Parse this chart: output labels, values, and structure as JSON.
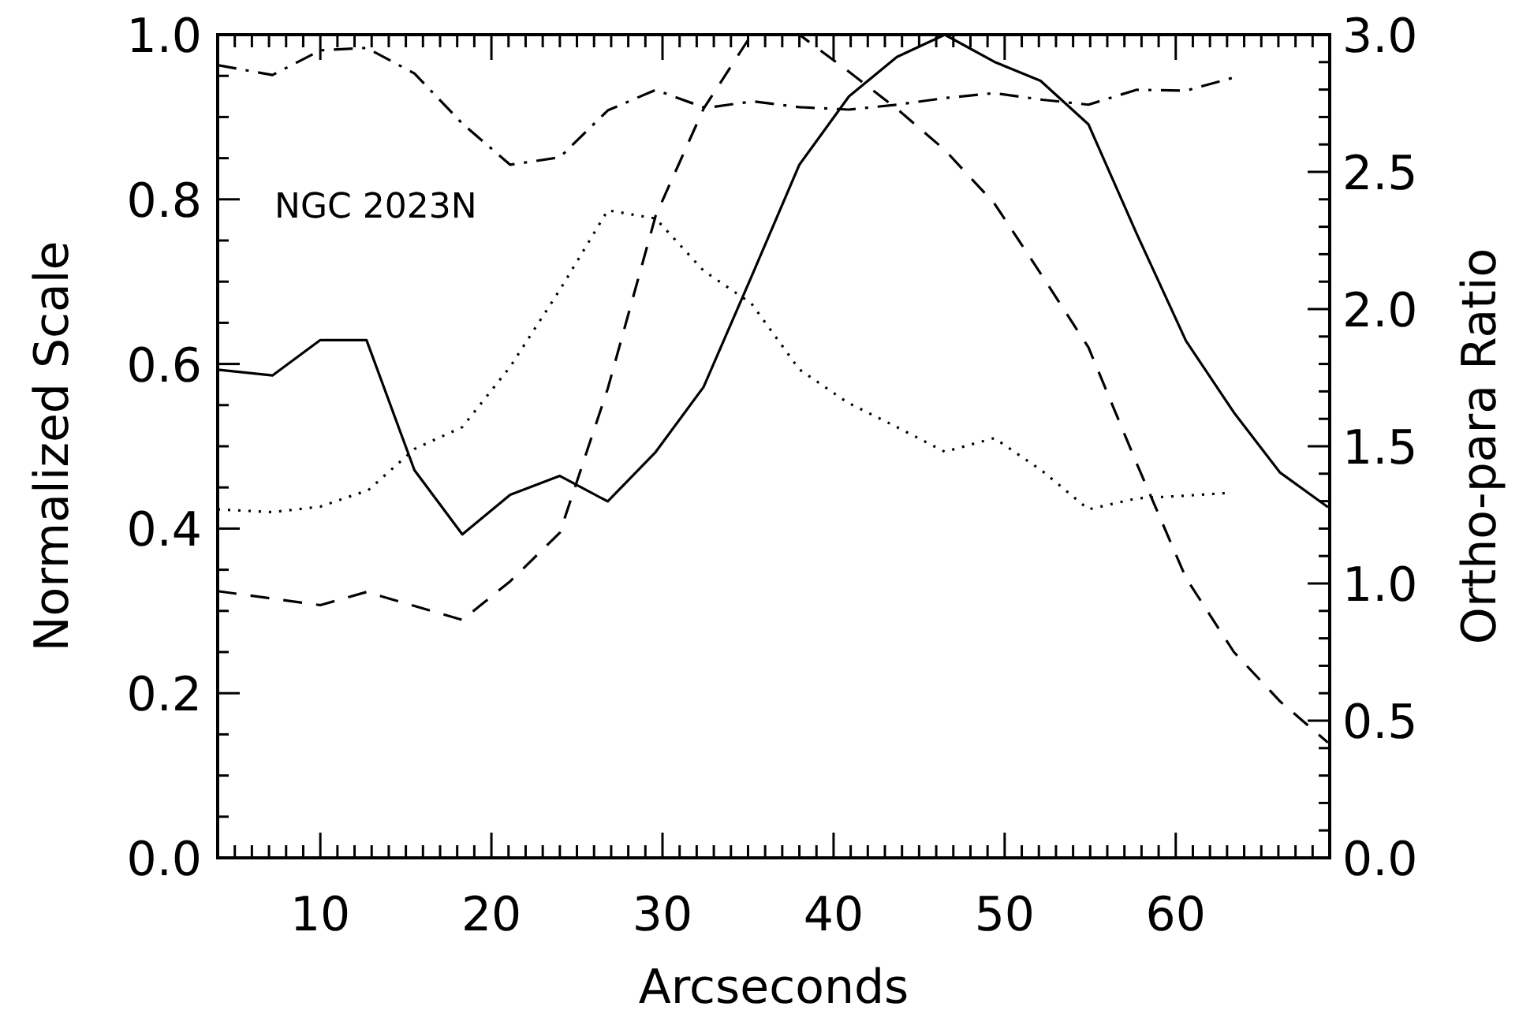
{
  "chart_data": {
    "type": "line",
    "xlabel": "Arcseconds",
    "ylabel": "Normalized Scale",
    "y2label": "Ortho-para Ratio",
    "annotations": [
      "NGC 2023N"
    ],
    "xlim": [
      4,
      69
    ],
    "ylim": [
      0,
      1
    ],
    "y2lim": [
      0,
      3
    ],
    "xticks": [
      {
        "value": 5,
        "label": null
      },
      {
        "value": 6,
        "label": null
      },
      {
        "value": 7,
        "label": null
      },
      {
        "value": 8,
        "label": null
      },
      {
        "value": 9,
        "label": null
      },
      10,
      {
        "value": 11,
        "label": null
      },
      {
        "value": 12,
        "label": null
      },
      {
        "value": 13,
        "label": null
      },
      {
        "value": 14,
        "label": null
      },
      {
        "value": 15,
        "label": null
      },
      {
        "value": 16,
        "label": null
      },
      {
        "value": 17,
        "label": null
      },
      {
        "value": 18,
        "label": null
      },
      {
        "value": 19,
        "label": null
      },
      20,
      {
        "value": 21,
        "label": null
      },
      {
        "value": 22,
        "label": null
      },
      {
        "value": 23,
        "label": null
      },
      {
        "value": 24,
        "label": null
      },
      {
        "value": 25,
        "label": null
      },
      {
        "value": 26,
        "label": null
      },
      {
        "value": 27,
        "label": null
      },
      {
        "value": 28,
        "label": null
      },
      {
        "value": 29,
        "label": null
      },
      30,
      {
        "value": 31,
        "label": null
      },
      {
        "value": 32,
        "label": null
      },
      {
        "value": 33,
        "label": null
      },
      {
        "value": 34,
        "label": null
      },
      {
        "value": 35,
        "label": null
      },
      {
        "value": 36,
        "label": null
      },
      {
        "value": 37,
        "label": null
      },
      {
        "value": 38,
        "label": null
      },
      {
        "value": 39,
        "label": null
      },
      40,
      {
        "value": 41,
        "label": null
      },
      {
        "value": 42,
        "label": null
      },
      {
        "value": 43,
        "label": null
      },
      {
        "value": 44,
        "label": null
      },
      {
        "value": 45,
        "label": null
      },
      {
        "value": 46,
        "label": null
      },
      {
        "value": 47,
        "label": null
      },
      {
        "value": 48,
        "label": null
      },
      {
        "value": 49,
        "label": null
      },
      50,
      {
        "value": 51,
        "label": null
      },
      {
        "value": 52,
        "label": null
      },
      {
        "value": 53,
        "label": null
      },
      {
        "value": 54,
        "label": null
      },
      {
        "value": 55,
        "label": null
      },
      {
        "value": 56,
        "label": null
      },
      {
        "value": 57,
        "label": null
      },
      {
        "value": 58,
        "label": null
      },
      {
        "value": 59,
        "label": null
      },
      60,
      {
        "value": 61,
        "label": null
      },
      {
        "value": 62,
        "label": null
      },
      {
        "value": 63,
        "label": null
      },
      {
        "value": 64,
        "label": null
      },
      {
        "value": 65,
        "label": null
      },
      {
        "value": 66,
        "label": null
      },
      {
        "value": 67,
        "label": null
      },
      {
        "value": 68,
        "label": null
      }
    ],
    "yticks": [
      {
        "value": 0,
        "label": "0.0"
      },
      {
        "value": 0.05,
        "label": null
      },
      {
        "value": 0.1,
        "label": null
      },
      {
        "value": 0.15,
        "label": null
      },
      0.2,
      {
        "value": 0.25,
        "label": null
      },
      {
        "value": 0.3,
        "label": null
      },
      {
        "value": 0.35,
        "label": null
      },
      0.4,
      {
        "value": 0.45,
        "label": null
      },
      {
        "value": 0.5,
        "label": null
      },
      {
        "value": 0.55,
        "label": null
      },
      0.6,
      {
        "value": 0.65,
        "label": null
      },
      {
        "value": 0.7,
        "label": null
      },
      {
        "value": 0.75,
        "label": null
      },
      0.8,
      {
        "value": 0.85,
        "label": null
      },
      {
        "value": 0.9,
        "label": null
      },
      {
        "value": 0.95,
        "label": null
      },
      {
        "value": 1,
        "label": "1.0"
      }
    ],
    "y2ticks": [
      {
        "value": 0,
        "label": "0.0"
      },
      {
        "value": 0.1,
        "label": null
      },
      {
        "value": 0.2,
        "label": null
      },
      {
        "value": 0.3,
        "label": null
      },
      {
        "value": 0.4,
        "label": null
      },
      0.5,
      {
        "value": 0.6,
        "label": null
      },
      {
        "value": 0.7,
        "label": null
      },
      {
        "value": 0.8,
        "label": null
      },
      {
        "value": 0.9,
        "label": null
      },
      {
        "value": 1,
        "label": "1.0"
      },
      {
        "value": 1.1,
        "label": null
      },
      {
        "value": 1.2,
        "label": null
      },
      {
        "value": 1.3,
        "label": null
      },
      {
        "value": 1.4,
        "label": null
      },
      1.5,
      {
        "value": 1.6,
        "label": null
      },
      {
        "value": 1.7,
        "label": null
      },
      {
        "value": 1.8,
        "label": null
      },
      {
        "value": 1.9,
        "label": null
      },
      {
        "value": 2,
        "label": "2.0"
      },
      {
        "value": 2.1,
        "label": null
      },
      {
        "value": 2.2,
        "label": null
      },
      {
        "value": 2.3,
        "label": null
      },
      {
        "value": 2.4,
        "label": null
      },
      2.5,
      {
        "value": 2.6,
        "label": null
      },
      {
        "value": 2.7,
        "label": null
      },
      {
        "value": 2.8,
        "label": null
      },
      {
        "value": 2.9,
        "label": null
      },
      {
        "value": 3,
        "label": "3.0"
      }
    ],
    "series": [
      {
        "color": "#000000",
        "line_style": "solid",
        "x": [
          4.0,
          7.2,
          10.0,
          12.7,
          15.5,
          18.3,
          21.1,
          24.0,
          26.8,
          29.6,
          32.4,
          35.2,
          38.0,
          40.9,
          43.7,
          46.5,
          49.4,
          52.1,
          54.9,
          57.7,
          60.6,
          63.4,
          66.1,
          68.9
        ],
        "values": [
          0.593,
          0.586,
          0.629,
          0.629,
          0.471,
          0.393,
          0.441,
          0.464,
          0.433,
          0.493,
          0.572,
          0.706,
          0.842,
          0.925,
          0.973,
          1.0,
          0.967,
          0.944,
          0.891,
          0.759,
          0.628,
          0.541,
          0.468,
          0.426
        ]
      },
      {
        "color": "#000000",
        "line_style": "dashed",
        "x": [
          4.0,
          10.0,
          12.7,
          18.3,
          21.1,
          24.0,
          26.8,
          29.6,
          32.4,
          35.2,
          38.0,
          40.9,
          43.7,
          46.5,
          49.4,
          52.1,
          54.9,
          57.7,
          60.6,
          63.4,
          66.1,
          68.9
        ],
        "values": [
          0.324,
          0.307,
          0.323,
          0.289,
          0.336,
          0.395,
          0.57,
          0.78,
          0.91,
          1.0,
          1.0,
          0.955,
          0.91,
          0.86,
          0.795,
          0.71,
          0.62,
          0.48,
          0.34,
          0.25,
          0.19,
          0.14
        ]
      },
      {
        "color": "#000000",
        "line_style": "dotted",
        "axis": "y2",
        "x": [
          4.0,
          7.2,
          10.0,
          12.8,
          15.5,
          18.3,
          21.1,
          24.0,
          26.8,
          29.6,
          32.4,
          35.2,
          38.0,
          40.8,
          43.7,
          46.5,
          49.4,
          52.2,
          54.9,
          57.7,
          60.6,
          63.1
        ],
        "values": [
          1.27,
          1.26,
          1.28,
          1.34,
          1.49,
          1.57,
          1.79,
          2.07,
          2.36,
          2.33,
          2.14,
          2.02,
          1.78,
          1.66,
          1.57,
          1.48,
          1.53,
          1.41,
          1.27,
          1.31,
          1.32,
          1.33
        ]
      },
      {
        "color": "#000000",
        "line_style": "dashdot",
        "x": [
          4.0,
          7.2,
          10.0,
          12.7,
          15.5,
          18.3,
          21.1,
          24.0,
          26.8,
          29.6,
          32.5,
          35.3,
          38.0,
          40.9,
          43.7,
          46.5,
          49.4,
          52.2,
          54.9,
          57.7,
          60.6,
          63.4
        ],
        "values": [
          0.963,
          0.951,
          0.981,
          0.984,
          0.953,
          0.892,
          0.842,
          0.851,
          0.908,
          0.933,
          0.911,
          0.919,
          0.912,
          0.909,
          0.915,
          0.923,
          0.929,
          0.921,
          0.915,
          0.933,
          0.932,
          0.948
        ]
      }
    ]
  }
}
